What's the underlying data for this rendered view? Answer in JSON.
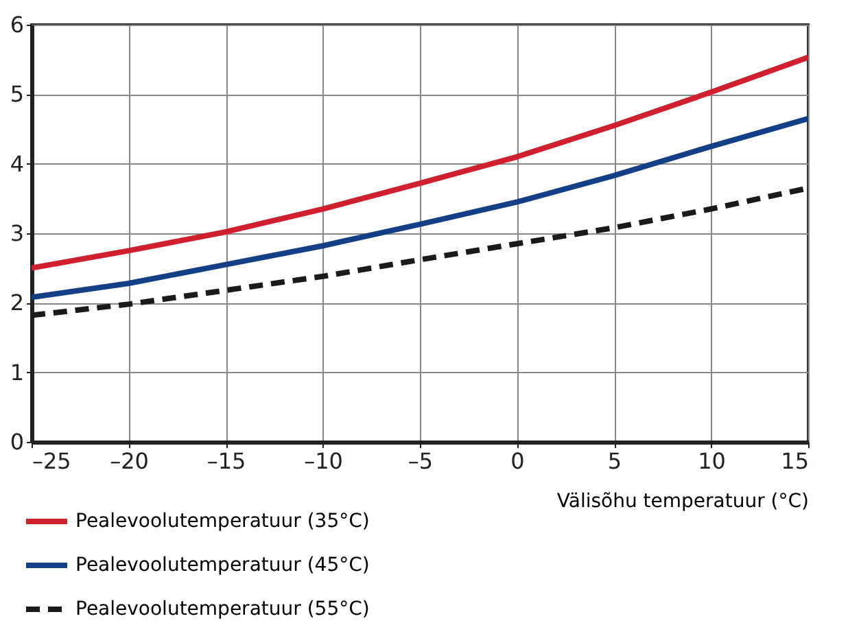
{
  "chart_data": {
    "type": "line",
    "xlabel": "Välisõhu temperatuur (°C)",
    "x": [
      -25,
      -20,
      -15,
      -10,
      -5,
      0,
      5,
      10,
      15
    ],
    "series": [
      {
        "name": "Pealevoolutemperatuur (35°C)",
        "color": "#d0202e",
        "line_style": "solid",
        "values": [
          2.5,
          2.75,
          3.02,
          3.35,
          3.72,
          4.1,
          4.55,
          5.03,
          5.53
        ]
      },
      {
        "name": "Pealevoolutemperatuur (45°C)",
        "color": "#123f85",
        "line_style": "solid",
        "values": [
          2.08,
          2.28,
          2.55,
          2.82,
          3.13,
          3.45,
          3.83,
          4.25,
          4.65
        ]
      },
      {
        "name": "Pealevoolutemperatuur (55°C)",
        "color": "#1a1a1a",
        "line_style": "dashed",
        "values": [
          1.82,
          1.98,
          2.18,
          2.38,
          2.62,
          2.85,
          3.08,
          3.35,
          3.65
        ]
      }
    ],
    "xlim": [
      -25,
      15
    ],
    "xticks": [
      {
        "value": -25,
        "label": "–25"
      },
      {
        "value": -20,
        "label": "–20"
      },
      {
        "value": -15,
        "label": "–15"
      },
      {
        "value": -10,
        "label": "–10"
      },
      {
        "value": -5,
        "label": "–5"
      },
      0,
      5,
      10,
      15
    ],
    "ylim": [
      0,
      6
    ],
    "yticks": [
      0,
      1,
      2,
      3,
      4,
      5,
      6
    ],
    "grid": true,
    "legend": "bottom left"
  }
}
